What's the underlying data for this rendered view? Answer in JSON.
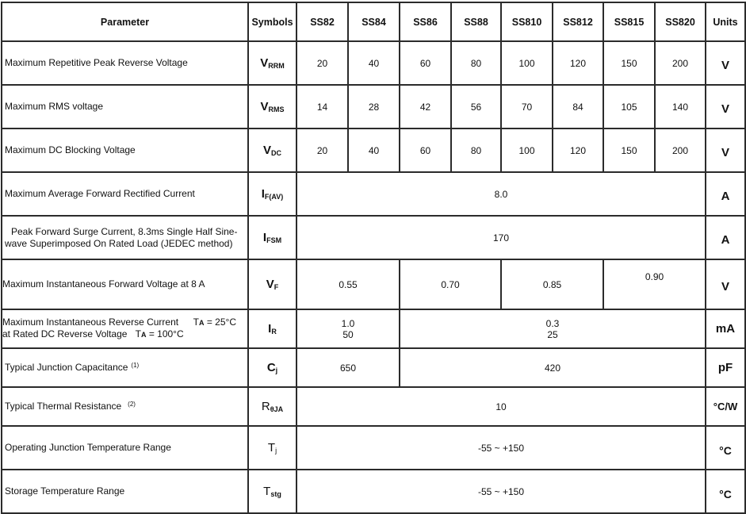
{
  "header": {
    "parameter": "Parameter",
    "symbols": "Symbols",
    "models": [
      "SS82",
      "SS84",
      "SS86",
      "SS88",
      "SS810",
      "SS812",
      "SS815",
      "SS820"
    ],
    "units": "Units"
  },
  "rows": [
    {
      "param": "Maximum Repetitive Peak Reverse Voltage",
      "sym": "V",
      "sub": "RRM",
      "values": [
        "20",
        "40",
        "60",
        "80",
        "100",
        "120",
        "150",
        "200"
      ],
      "unit": "V"
    },
    {
      "param": "Maximum RMS voltage",
      "sym": "V",
      "sub": "RMS",
      "values": [
        "14",
        "28",
        "42",
        "56",
        "70",
        "84",
        "105",
        "140"
      ],
      "unit": "V"
    },
    {
      "param": "Maximum DC Blocking Voltage",
      "sym": "V",
      "sub": "DC",
      "values": [
        "20",
        "40",
        "60",
        "80",
        "100",
        "120",
        "150",
        "200"
      ],
      "unit": "V"
    },
    {
      "param": "Maximum Average Forward Rectified Current",
      "sym": "I",
      "sub": "F(AV)",
      "value": "8.0",
      "unit": "A"
    },
    {
      "param_line1": "Peak Forward Surge Current, 8.3ms Single Half Sine-",
      "param_line2": "wave  Superimposed On Rated Load (JEDEC method)",
      "sym": "I",
      "sub": "FSM",
      "value": "170",
      "unit": "A"
    },
    {
      "param": "Maximum Instantaneous Forward Voltage at 8 A",
      "sym": "V",
      "sub": "F",
      "values": [
        "0.55",
        "0.70",
        "0.85",
        "0.90"
      ],
      "unit": "V"
    },
    {
      "param_line1": "Maximum Instantaneous Reverse Current",
      "param_line2": "at Rated DC Reverse Voltage",
      "cond1": "T",
      "cond1_sub": "A",
      "cond1_val": " = 25°C",
      "cond2": "T",
      "cond2_sub": "A",
      "cond2_val": " = 100°C",
      "sym": "I",
      "sub": "R",
      "group1": [
        "1.0",
        "50"
      ],
      "group2": [
        "0.3",
        "25"
      ],
      "unit": "mA"
    },
    {
      "param": "Typical Junction Capacitance",
      "note": "(1)",
      "sym": "C",
      "sub": "j",
      "values": [
        "650",
        "420"
      ],
      "unit": "pF"
    },
    {
      "param": "Typical Thermal Resistance",
      "note": "(2)",
      "sym": "R",
      "sub": "θJA",
      "value": "10",
      "unit": "°C/W"
    },
    {
      "param": "Operating Junction Temperature Range",
      "sym": "T",
      "sub": "j",
      "value": "-55 ~ +150",
      "unit": "°C"
    },
    {
      "param": "Storage Temperature Range",
      "sym": "T",
      "sub": "stg",
      "value": "-55 ~ +150",
      "unit": "°C"
    }
  ]
}
